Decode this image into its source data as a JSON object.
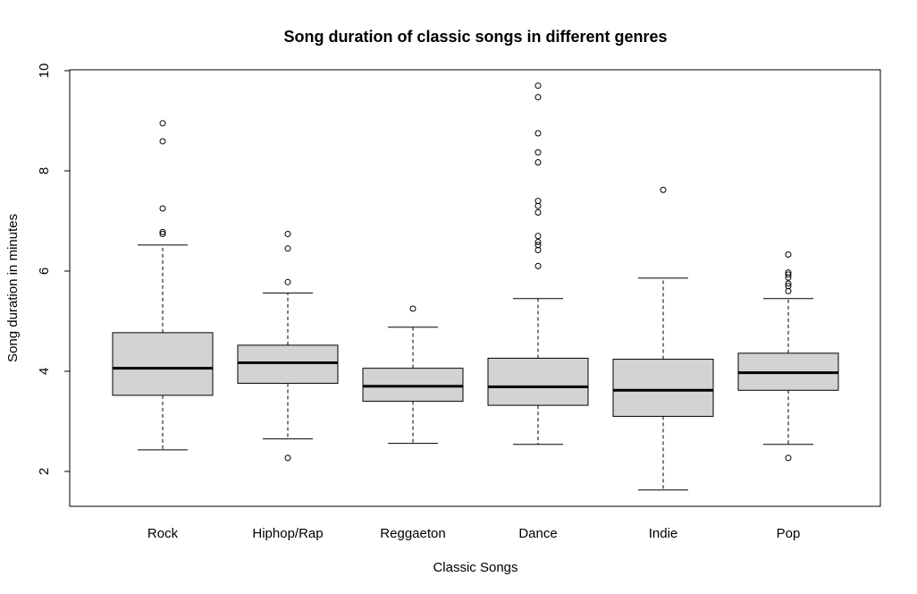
{
  "chart_data": {
    "type": "boxplot",
    "title": "Song duration of classic songs in different genres",
    "xlabel": "Classic Songs",
    "ylabel": "Song duration in minutes",
    "ylim": [
      1.3,
      10.0
    ],
    "yticks": [
      2,
      4,
      6,
      8,
      10
    ],
    "grid": false,
    "legend": "none",
    "colors": {
      "box_fill": "#d3d3d3",
      "stroke": "#000000",
      "background": "#ffffff"
    },
    "categories": [
      "Rock",
      "Hiphop/Rap",
      "Reggaeton",
      "Dance",
      "Indie",
      "Pop"
    ],
    "boxes": [
      {
        "label": "Rock",
        "whisker_low": 2.43,
        "q1": 3.52,
        "median": 4.06,
        "q3": 4.77,
        "whisker_high": 6.52,
        "outliers": [
          6.74,
          6.78,
          7.25,
          8.59,
          8.95
        ]
      },
      {
        "label": "Hiphop/Rap",
        "whisker_low": 2.65,
        "q1": 3.76,
        "median": 4.17,
        "q3": 4.52,
        "whisker_high": 5.56,
        "outliers": [
          2.27,
          5.78,
          6.45,
          6.74
        ]
      },
      {
        "label": "Reggaeton",
        "whisker_low": 2.56,
        "q1": 3.4,
        "median": 3.7,
        "q3": 4.06,
        "whisker_high": 4.88,
        "outliers": [
          5.25
        ]
      },
      {
        "label": "Dance",
        "whisker_low": 2.54,
        "q1": 3.32,
        "median": 3.69,
        "q3": 4.26,
        "whisker_high": 5.45,
        "outliers": [
          6.1,
          6.42,
          6.52,
          6.58,
          6.7,
          7.17,
          7.3,
          7.4,
          8.17,
          8.37,
          8.75,
          9.47,
          9.7
        ]
      },
      {
        "label": "Indie",
        "whisker_low": 1.63,
        "q1": 3.1,
        "median": 3.62,
        "q3": 4.24,
        "whisker_high": 5.86,
        "outliers": [
          7.62
        ]
      },
      {
        "label": "Pop",
        "whisker_low": 2.54,
        "q1": 3.62,
        "median": 3.97,
        "q3": 4.36,
        "whisker_high": 5.45,
        "outliers": [
          2.27,
          5.6,
          5.7,
          5.75,
          5.87,
          5.93,
          5.97,
          6.33
        ]
      }
    ]
  }
}
